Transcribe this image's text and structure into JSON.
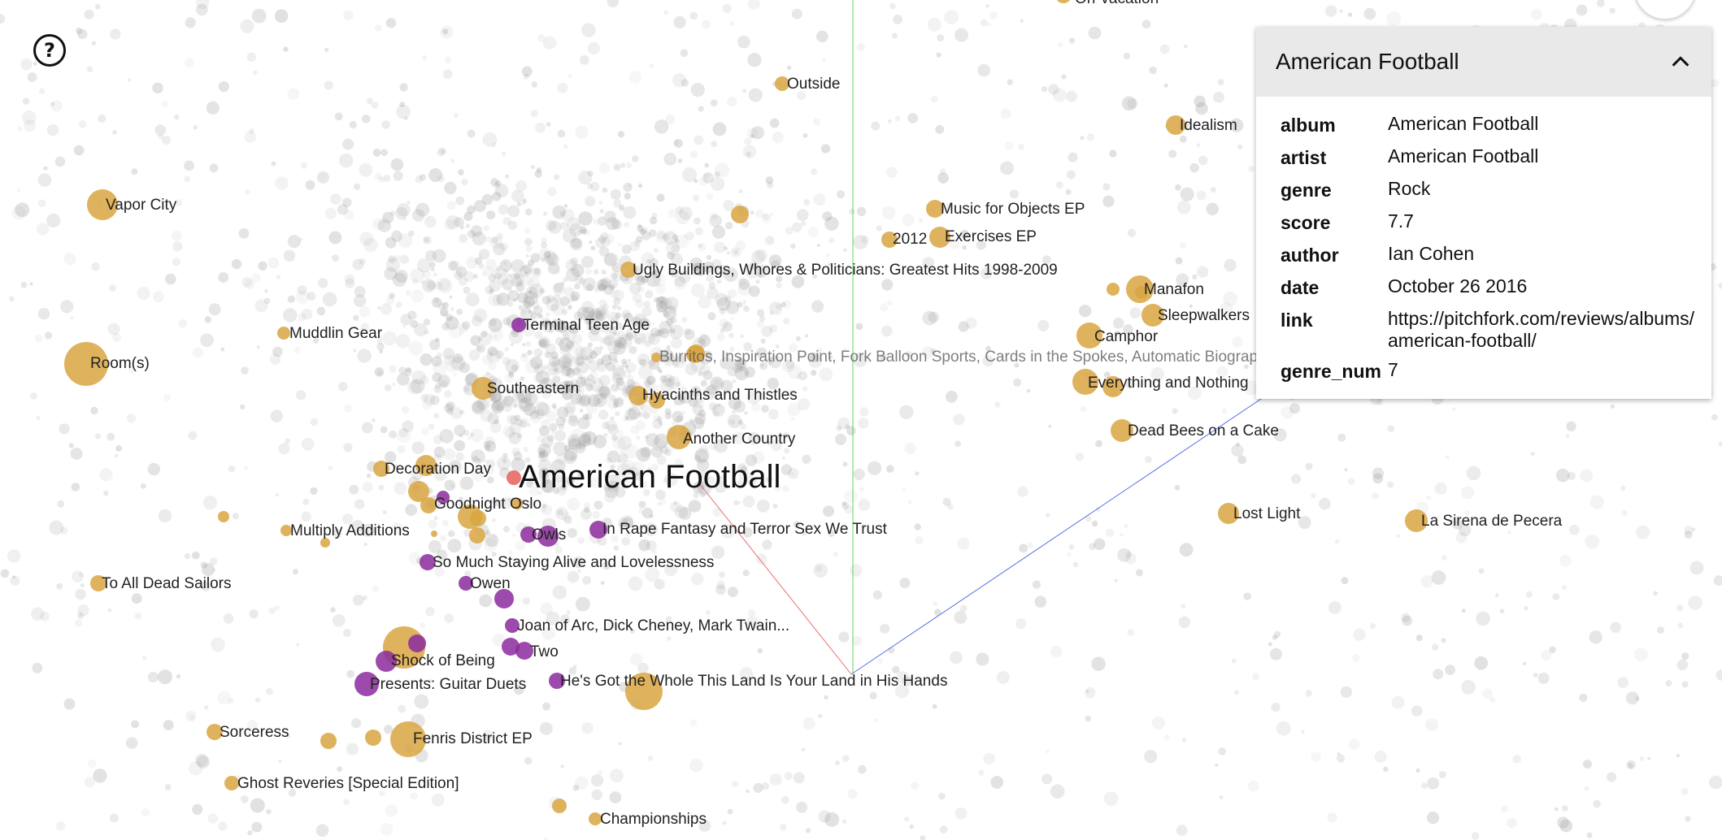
{
  "help": {
    "icon": "?"
  },
  "panel": {
    "title": "American Football",
    "fields": [
      {
        "key": "album",
        "value": "American Football"
      },
      {
        "key": "artist",
        "value": "American Football"
      },
      {
        "key": "genre",
        "value": "Rock"
      },
      {
        "key": "score",
        "value": "7.7"
      },
      {
        "key": "author",
        "value": "Ian Cohen"
      },
      {
        "key": "date",
        "value": "October 26 2016"
      },
      {
        "key": "link",
        "value": "https://pitchfork.com/reviews/albums/",
        "value2": "american-football/"
      },
      {
        "key": "genre_num",
        "value": "7"
      }
    ]
  },
  "colors": {
    "gold": "#d9a441",
    "purple": "#8b2a9c",
    "selected": "#e8706a",
    "background_point": "#9a9a9a"
  },
  "plot": {
    "selected_label": "American Football",
    "labels": [
      "On Vacation",
      "Outside",
      "Idealism",
      "Vapor City",
      "Music for Objects EP",
      "2012",
      "Exercises EP",
      "Ugly Buildings, Whores & Politicians: Greatest Hits 1998-2009",
      "Manafon",
      "Sleepwalkers",
      "Muddlin Gear",
      "Terminal Teen Age",
      "Camphor",
      "Room(s)",
      "Burritos, Inspiration Point, Fork Balloon Sports, Cards in the Spokes, Automatic Biographies, Kites, Kung Fu, Trophies, Banana Peels We've Slipped On",
      "Southeastern",
      "Hyacinths and Thistles",
      "Everything and Nothing",
      "Dead Bees on a Cake",
      "Another Country",
      "Decoration Day",
      "Goodnight Oslo",
      "Lost Light",
      "La Sirena de Pecera",
      "Multiply Additions",
      "In Rape Fantasy and Terror Sex We Trust",
      "Owls",
      "So Much Staying Alive and Lovelessness",
      "To All Dead Sailors",
      "Owen",
      "Joan of Arc, Dick Cheney, Mark Twain...",
      "Two",
      "Shock of Being",
      "He's Got the Whole This Land Is Your Land in His Hands",
      "Presents: Guitar Duets",
      "Sorceress",
      "Fenris District EP",
      "Ghost Reveries [Special Edition]",
      "Championships"
    ]
  }
}
